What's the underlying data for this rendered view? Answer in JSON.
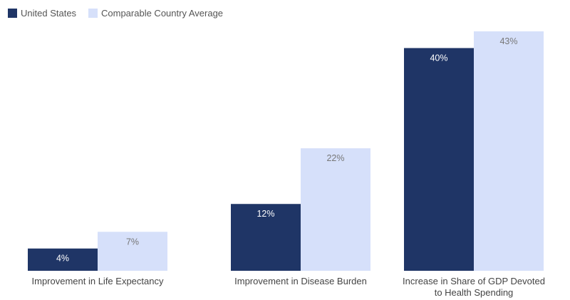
{
  "chart_data": {
    "type": "bar",
    "title": "",
    "xlabel": "",
    "ylabel": "",
    "ylim": [
      0,
      43
    ],
    "grid": false,
    "legend_position": "top-left",
    "categories": [
      [
        "Improvement in Life Expectancy"
      ],
      [
        "Improvement in Disease Burden"
      ],
      [
        "Increase in Share of GDP Devoted",
        "to Health Spending"
      ]
    ],
    "series": [
      {
        "name": "United States",
        "color": "#1f3566",
        "label_color": "#ffffff",
        "values": [
          4,
          12,
          40
        ],
        "labels": [
          "4%",
          "12%",
          "40%"
        ]
      },
      {
        "name": "Comparable Country Average",
        "color": "#d6e0fa",
        "label_color": "#777777",
        "values": [
          7,
          22,
          43
        ],
        "labels": [
          "7%",
          "22%",
          "43%"
        ]
      }
    ]
  }
}
